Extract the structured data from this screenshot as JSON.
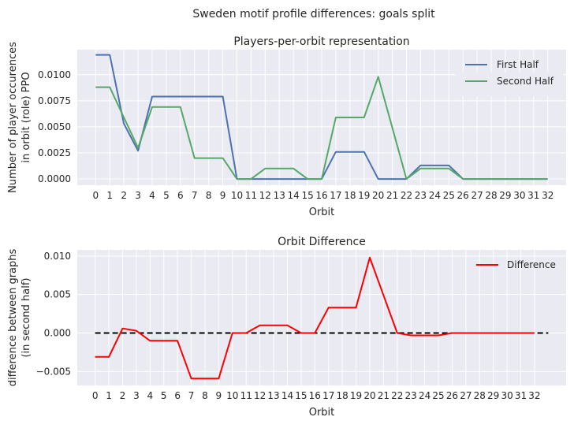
{
  "suptitle": "Sweden motif profile differences: goals split",
  "chart_data": [
    {
      "type": "line",
      "title": "Players-per-orbit representation",
      "xlabel": "Orbit",
      "ylabel": [
        "Number of player occurences",
        "in orbit (role) PPO"
      ],
      "x": [
        0,
        1,
        2,
        3,
        4,
        5,
        6,
        7,
        8,
        9,
        10,
        11,
        12,
        13,
        14,
        15,
        16,
        17,
        18,
        19,
        20,
        21,
        22,
        23,
        24,
        25,
        26,
        27,
        28,
        29,
        30,
        31,
        32
      ],
      "xticks": [
        "0",
        "1",
        "2",
        "3",
        "4",
        "5",
        "6",
        "7",
        "8",
        "9",
        "10",
        "11",
        "12",
        "13",
        "14",
        "15",
        "16",
        "17",
        "18",
        "19",
        "20",
        "21",
        "22",
        "23",
        "24",
        "25",
        "26",
        "27",
        "28",
        "29",
        "30",
        "31",
        "32"
      ],
      "yticks": [
        "0.0000",
        "0.0025",
        "0.0050",
        "0.0075",
        "0.0100"
      ],
      "ytick_values": [
        0,
        0.0025,
        0.005,
        0.0075,
        0.01
      ],
      "xlim": [
        -1.3,
        33.3
      ],
      "ylim": [
        -0.0006,
        0.0124
      ],
      "grid": true,
      "legend_position": "top-right",
      "series": [
        {
          "name": "First Half",
          "color": "#4c72b0",
          "values": [
            0.0119,
            0.0119,
            0.0053,
            0.0027,
            0.0079,
            0.0079,
            0.0079,
            0.0079,
            0.0079,
            0.0079,
            0,
            0,
            0,
            0,
            0,
            0,
            0,
            0.0026,
            0.0026,
            0.0026,
            0,
            0,
            0,
            0.0013,
            0.0013,
            0.0013,
            0,
            0,
            0,
            0,
            0,
            0,
            0
          ]
        },
        {
          "name": "Second Half",
          "color": "#55a868",
          "values": [
            0.0088,
            0.0088,
            0.0059,
            0.003,
            0.0069,
            0.0069,
            0.0069,
            0.002,
            0.002,
            0.002,
            0,
            0,
            0.001,
            0.001,
            0.001,
            0,
            0,
            0.0059,
            0.0059,
            0.0059,
            0.0098,
            0.0049,
            0,
            0.001,
            0.001,
            0.001,
            0,
            0,
            0,
            0,
            0,
            0,
            0
          ]
        }
      ]
    },
    {
      "type": "line",
      "title": "Orbit Difference",
      "xlabel": "Orbit",
      "ylabel": [
        "difference between graphs",
        "(in second half)"
      ],
      "x": [
        0,
        1,
        2,
        3,
        4,
        5,
        6,
        7,
        8,
        9,
        10,
        11,
        12,
        13,
        14,
        15,
        16,
        17,
        18,
        19,
        20,
        21,
        22,
        23,
        24,
        25,
        26,
        27,
        28,
        29,
        30,
        31,
        32
      ],
      "xticks": [
        "0",
        "1",
        "2",
        "3",
        "4",
        "5",
        "6",
        "7",
        "8",
        "9",
        "10",
        "11",
        "12",
        "13",
        "14",
        "15",
        "16",
        "17",
        "18",
        "19",
        "20",
        "21",
        "22",
        "23",
        "24",
        "25",
        "26",
        "27",
        "28",
        "29",
        "30",
        "31",
        "32"
      ],
      "yticks": [
        "−0.005",
        "0.000",
        "0.005",
        "0.010"
      ],
      "ytick_values": [
        -0.005,
        0,
        0.005,
        0.01
      ],
      "xlim": [
        -1.3,
        34.3
      ],
      "ylim": [
        -0.0068,
        0.0108
      ],
      "grid": true,
      "legend_position": "top-right",
      "series": [
        {
          "name": "Difference",
          "color": "#ff0000",
          "values": [
            -0.0031,
            -0.0031,
            0.0006,
            0.0003,
            -0.001,
            -0.001,
            -0.001,
            -0.0059,
            -0.0059,
            -0.0059,
            0,
            0,
            0.001,
            0.001,
            0.001,
            0,
            0,
            0.0033,
            0.0033,
            0.0033,
            0.0098,
            0.0049,
            0,
            -0.0003,
            -0.0003,
            -0.0003,
            0,
            0,
            0,
            0,
            0,
            0,
            0
          ]
        }
      ],
      "reference_line": {
        "y": 0,
        "x_range": [
          0,
          33
        ],
        "color": "#000000",
        "style": "dashed"
      }
    }
  ]
}
